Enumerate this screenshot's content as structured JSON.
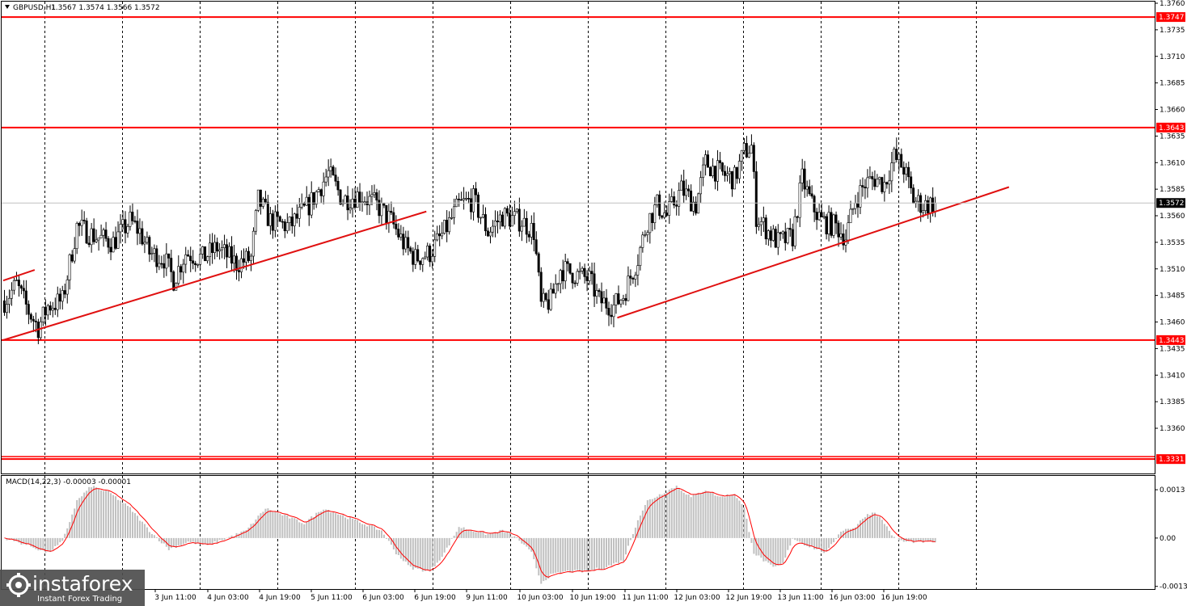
{
  "header": {
    "symbol": "GBPUSD,H1",
    "ohlc": "1.3567 1.3574 1.3566 1.3572",
    "indicator_label": "MACD(14,22,3) -0.00003 -0.00001"
  },
  "watermark": {
    "brand": "instaforex",
    "tagline": "Instant Forex Trading"
  },
  "colors": {
    "background": "#ffffff",
    "candle": "#000000",
    "level_line": "#ff0000",
    "trend_line": "#e01010",
    "grid": "#000000",
    "macd_hist": "#c0c0c0",
    "macd_signal": "#ff0000",
    "price_marker_bg": "#000000",
    "level_label_bg": "#ff0000",
    "watermark_bg": "#4d4d4d"
  },
  "chart_data": {
    "type": "candlestick",
    "symbol": "GBPUSD",
    "timeframe": "H1",
    "last_close": 1.3572,
    "ylim": [
      1.3322,
      1.376
    ],
    "price_ticks": [
      "1.3760",
      "1.3735",
      "1.3710",
      "1.3685",
      "1.3660",
      "1.3635",
      "1.3610",
      "1.3585",
      "1.3560",
      "1.3535",
      "1.3510",
      "1.3485",
      "1.3460",
      "1.3435",
      "1.3410",
      "1.3385",
      "1.3360"
    ],
    "time_labels": [
      "3 Jun 11:00",
      "4 Jun 03:00",
      "4 Jun 19:00",
      "5 Jun 11:00",
      "6 Jun 03:00",
      "6 Jun 19:00",
      "9 Jun 11:00",
      "10 Jun 03:00",
      "10 Jun 19:00",
      "11 Jun 11:00",
      "12 Jun 03:00",
      "12 Jun 19:00",
      "13 Jun 11:00",
      "16 Jun 03:00",
      "16 Jun 19:00"
    ],
    "levels": [
      {
        "value": 1.3747,
        "label": "1.3747"
      },
      {
        "value": 1.3643,
        "label": "1.3643"
      },
      {
        "value": 1.3443,
        "label": "1.3443"
      },
      {
        "value": 1.3331,
        "label": "1.3331"
      }
    ],
    "trend_lines": [
      {
        "from": {
          "bar": 0,
          "price": 1.3499
        },
        "to": {
          "bar": 13,
          "price": 1.3509
        }
      },
      {
        "from": {
          "bar": 0,
          "price": 1.3443
        },
        "to": {
          "bar": 175,
          "price": 1.3564
        }
      },
      {
        "from": {
          "bar": 254,
          "price": 1.3464
        },
        "to": {
          "bar": 416,
          "price": 1.3587
        }
      }
    ],
    "price_anchors": [
      [
        0,
        1.348
      ],
      [
        5,
        1.3495
      ],
      [
        10,
        1.347
      ],
      [
        14,
        1.3455
      ],
      [
        18,
        1.3475
      ],
      [
        24,
        1.348
      ],
      [
        30,
        1.355
      ],
      [
        38,
        1.354
      ],
      [
        45,
        1.3535
      ],
      [
        52,
        1.3555
      ],
      [
        56,
        1.3545
      ],
      [
        60,
        1.3525
      ],
      [
        66,
        1.352
      ],
      [
        70,
        1.35
      ],
      [
        75,
        1.3525
      ],
      [
        82,
        1.352
      ],
      [
        88,
        1.353
      ],
      [
        96,
        1.3515
      ],
      [
        102,
        1.352
      ],
      [
        105,
        1.3575
      ],
      [
        110,
        1.3555
      ],
      [
        118,
        1.355
      ],
      [
        126,
        1.357
      ],
      [
        134,
        1.36
      ],
      [
        140,
        1.3575
      ],
      [
        147,
        1.358
      ],
      [
        154,
        1.357
      ],
      [
        160,
        1.3555
      ],
      [
        166,
        1.353
      ],
      [
        170,
        1.352
      ],
      [
        176,
        1.3525
      ],
      [
        182,
        1.3545
      ],
      [
        188,
        1.357
      ],
      [
        194,
        1.3575
      ],
      [
        200,
        1.3545
      ],
      [
        206,
        1.356
      ],
      [
        214,
        1.3555
      ],
      [
        219,
        1.3545
      ],
      [
        222,
        1.3475
      ],
      [
        226,
        1.348
      ],
      [
        230,
        1.351
      ],
      [
        236,
        1.3505
      ],
      [
        242,
        1.35
      ],
      [
        246,
        1.348
      ],
      [
        252,
        1.3475
      ],
      [
        256,
        1.3485
      ],
      [
        262,
        1.352
      ],
      [
        266,
        1.3555
      ],
      [
        270,
        1.357
      ],
      [
        274,
        1.356
      ],
      [
        280,
        1.3585
      ],
      [
        286,
        1.357
      ],
      [
        290,
        1.361
      ],
      [
        296,
        1.36
      ],
      [
        302,
        1.3595
      ],
      [
        306,
        1.362
      ],
      [
        309,
        1.3625
      ],
      [
        311,
        1.356
      ],
      [
        316,
        1.3545
      ],
      [
        320,
        1.3535
      ],
      [
        326,
        1.354
      ],
      [
        330,
        1.3595
      ],
      [
        334,
        1.357
      ],
      [
        338,
        1.3555
      ],
      [
        344,
        1.355
      ],
      [
        348,
        1.354
      ],
      [
        352,
        1.3575
      ],
      [
        356,
        1.359
      ],
      [
        360,
        1.3595
      ],
      [
        364,
        1.359
      ],
      [
        368,
        1.3615
      ],
      [
        372,
        1.3605
      ],
      [
        376,
        1.3575
      ],
      [
        380,
        1.357
      ],
      [
        385,
        1.3572
      ]
    ],
    "macd_scale": {
      "top_label": "0.0013",
      "zero_label": "0.00",
      "bottom_label": "-0.0013",
      "range": [
        -0.00135,
        0.00165
      ]
    },
    "macd_anchors": [
      [
        0,
        0.0
      ],
      [
        10,
        -0.0002
      ],
      [
        18,
        -0.0004
      ],
      [
        24,
        -0.0001
      ],
      [
        30,
        0.001
      ],
      [
        36,
        0.0014
      ],
      [
        44,
        0.0012
      ],
      [
        52,
        0.0008
      ],
      [
        60,
        0.0002
      ],
      [
        68,
        -0.0003
      ],
      [
        76,
        -0.0001
      ],
      [
        84,
        -0.0002
      ],
      [
        92,
        0.0
      ],
      [
        100,
        0.0002
      ],
      [
        108,
        0.0008
      ],
      [
        116,
        0.0006
      ],
      [
        124,
        0.0004
      ],
      [
        132,
        0.0008
      ],
      [
        140,
        0.0006
      ],
      [
        148,
        0.0004
      ],
      [
        156,
        0.0002
      ],
      [
        162,
        -0.0004
      ],
      [
        168,
        -0.0008
      ],
      [
        176,
        -0.0009
      ],
      [
        182,
        -0.0004
      ],
      [
        188,
        0.0003
      ],
      [
        194,
        0.0002
      ],
      [
        200,
        0.0001
      ],
      [
        206,
        0.0002
      ],
      [
        212,
        0.0
      ],
      [
        218,
        -0.0004
      ],
      [
        222,
        -0.0012
      ],
      [
        226,
        -0.001
      ],
      [
        232,
        -0.0009
      ],
      [
        240,
        -0.0009
      ],
      [
        248,
        -0.0008
      ],
      [
        256,
        -0.0006
      ],
      [
        262,
        0.0005
      ],
      [
        266,
        0.001
      ],
      [
        272,
        0.0012
      ],
      [
        278,
        0.0014
      ],
      [
        284,
        0.0011
      ],
      [
        290,
        0.0013
      ],
      [
        296,
        0.0011
      ],
      [
        302,
        0.0012
      ],
      [
        306,
        0.0008
      ],
      [
        310,
        -0.0004
      ],
      [
        314,
        -0.0006
      ],
      [
        318,
        -0.0008
      ],
      [
        322,
        -0.0007
      ],
      [
        326,
        0.0
      ],
      [
        332,
        -0.0002
      ],
      [
        340,
        -0.0004
      ],
      [
        346,
        0.0002
      ],
      [
        352,
        0.0003
      ],
      [
        356,
        0.0006
      ],
      [
        360,
        0.0007
      ],
      [
        364,
        0.0004
      ],
      [
        368,
        0.0
      ],
      [
        372,
        -0.0001
      ]
    ]
  }
}
